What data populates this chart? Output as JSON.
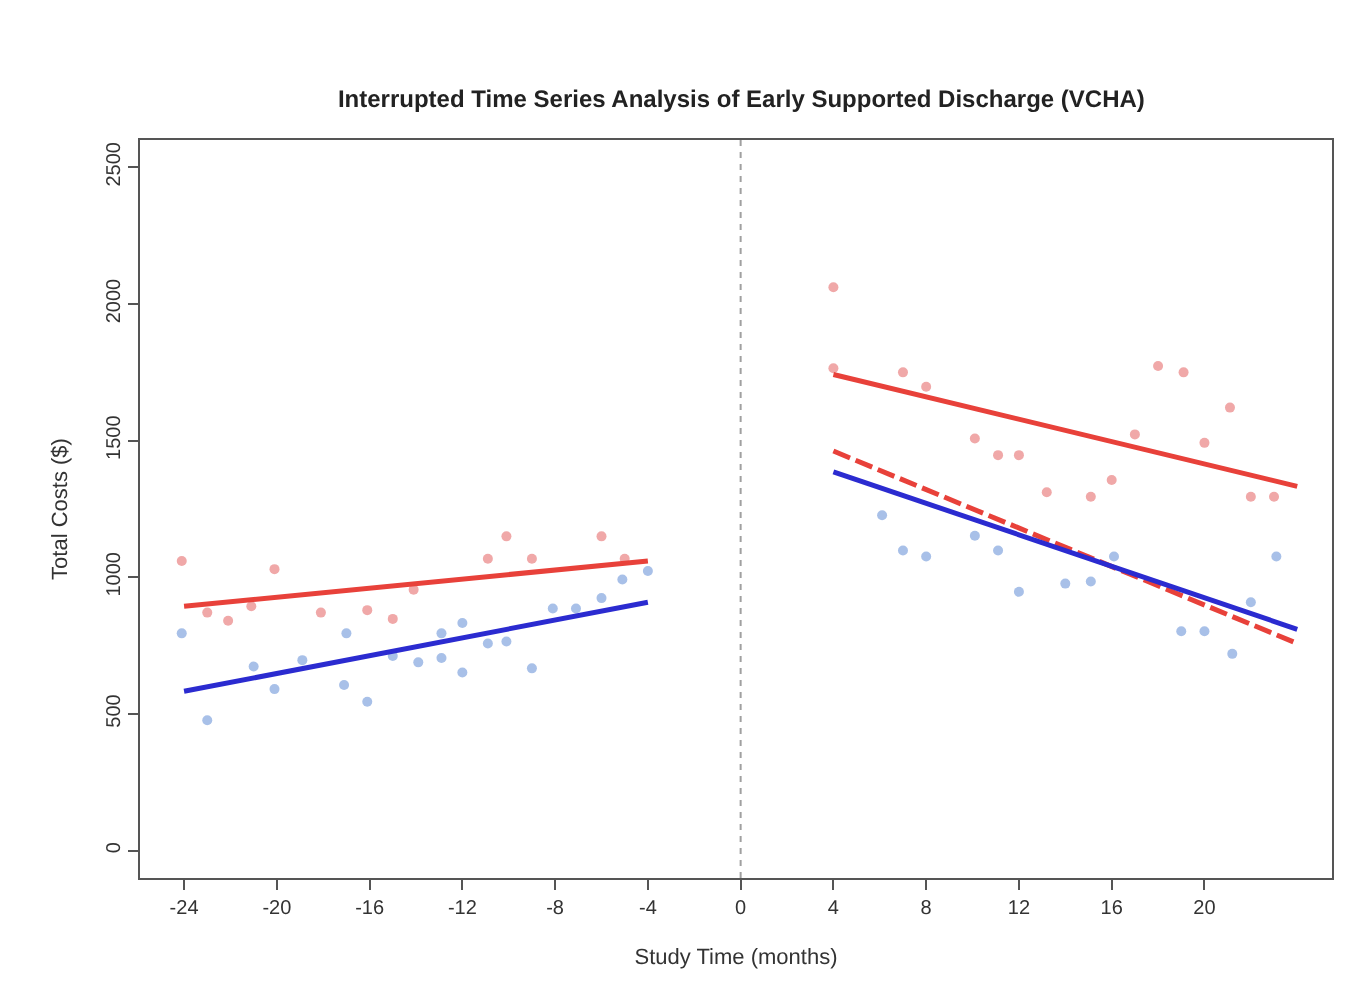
{
  "chart_data": {
    "type": "scatter",
    "title": "Interrupted Time Series Analysis of Early Supported Discharge (VCHA)",
    "xlabel": "Study Time (months)",
    "ylabel": "Total Costs ($)",
    "xlim": [
      -25.9,
      25.5
    ],
    "ylim": [
      -100,
      2600
    ],
    "xticks": [
      -24,
      -20,
      -16,
      -12,
      -8,
      -4,
      0,
      4,
      8,
      12,
      16,
      20
    ],
    "yticks": [
      0,
      500,
      1000,
      1500,
      2000,
      2500
    ],
    "marker": "circle",
    "ref_lines": [
      {
        "axis": "x",
        "value": 0,
        "color": "#a0a0a0",
        "line_style": "dotted"
      }
    ],
    "series": [
      {
        "color": "#f0a8a8",
        "x": [
          -24.1,
          -23,
          -22.1,
          -21.1,
          -20.1,
          -18.1,
          -16.1,
          -15,
          -14.1,
          -10.9,
          -10.1,
          -9,
          -6,
          -5,
          4,
          4,
          7,
          8,
          10.1,
          11.1,
          12,
          13.2,
          15.1,
          16,
          17,
          18,
          19.1,
          20,
          21.1,
          22,
          23
        ],
        "values": [
          1060,
          871,
          841,
          894,
          1030,
          871,
          880,
          848,
          955,
          1068,
          1150,
          1068,
          1150,
          1068,
          2061,
          1765,
          1750,
          1697,
          1508,
          1447,
          1447,
          1311,
          1295,
          1356,
          1523,
          1773,
          1750,
          1492,
          1621,
          1295,
          1295
        ]
      },
      {
        "color": "#a8c0e8",
        "x": [
          -24.1,
          -23,
          -21,
          -20.1,
          -18.9,
          -17,
          -17.1,
          -16.1,
          -15,
          -13.9,
          -12.9,
          -12.9,
          -12,
          -12,
          -10.9,
          -10.1,
          -9,
          -8.1,
          -7.1,
          -6,
          -5.1,
          -4,
          6.1,
          7,
          8,
          10.1,
          11.1,
          12,
          14,
          15.1,
          16.1,
          19,
          20,
          21.2,
          22,
          23.1
        ],
        "values": [
          795,
          477,
          674,
          591,
          697,
          795,
          606,
          545,
          712,
          689,
          705,
          795,
          652,
          833,
          758,
          765,
          667,
          886,
          886,
          924,
          992,
          1023,
          1227,
          1098,
          1076,
          1152,
          1098,
          947,
          977,
          985,
          1076,
          803,
          803,
          720,
          909,
          1076
        ]
      },
      {
        "type": "line",
        "color": "#e8413a",
        "line_style": "solid",
        "marker": "none",
        "x": [
          -24,
          -4
        ],
        "values": [
          894,
          1060
        ]
      },
      {
        "type": "line",
        "color": "#2b2bd0",
        "line_style": "solid",
        "marker": "none",
        "x": [
          -24,
          -4
        ],
        "values": [
          583,
          909
        ]
      },
      {
        "type": "line",
        "color": "#e8413a",
        "line_style": "solid",
        "marker": "none",
        "x": [
          4,
          24
        ],
        "values": [
          1742,
          1333
        ]
      },
      {
        "type": "line",
        "color": "#e8413a",
        "line_style": "dashed",
        "marker": "none",
        "x": [
          4,
          24
        ],
        "values": [
          1462,
          758
        ]
      },
      {
        "type": "line",
        "color": "#2b2bd0",
        "line_style": "solid",
        "marker": "none",
        "x": [
          4,
          24
        ],
        "values": [
          1386,
          810
        ]
      }
    ]
  }
}
